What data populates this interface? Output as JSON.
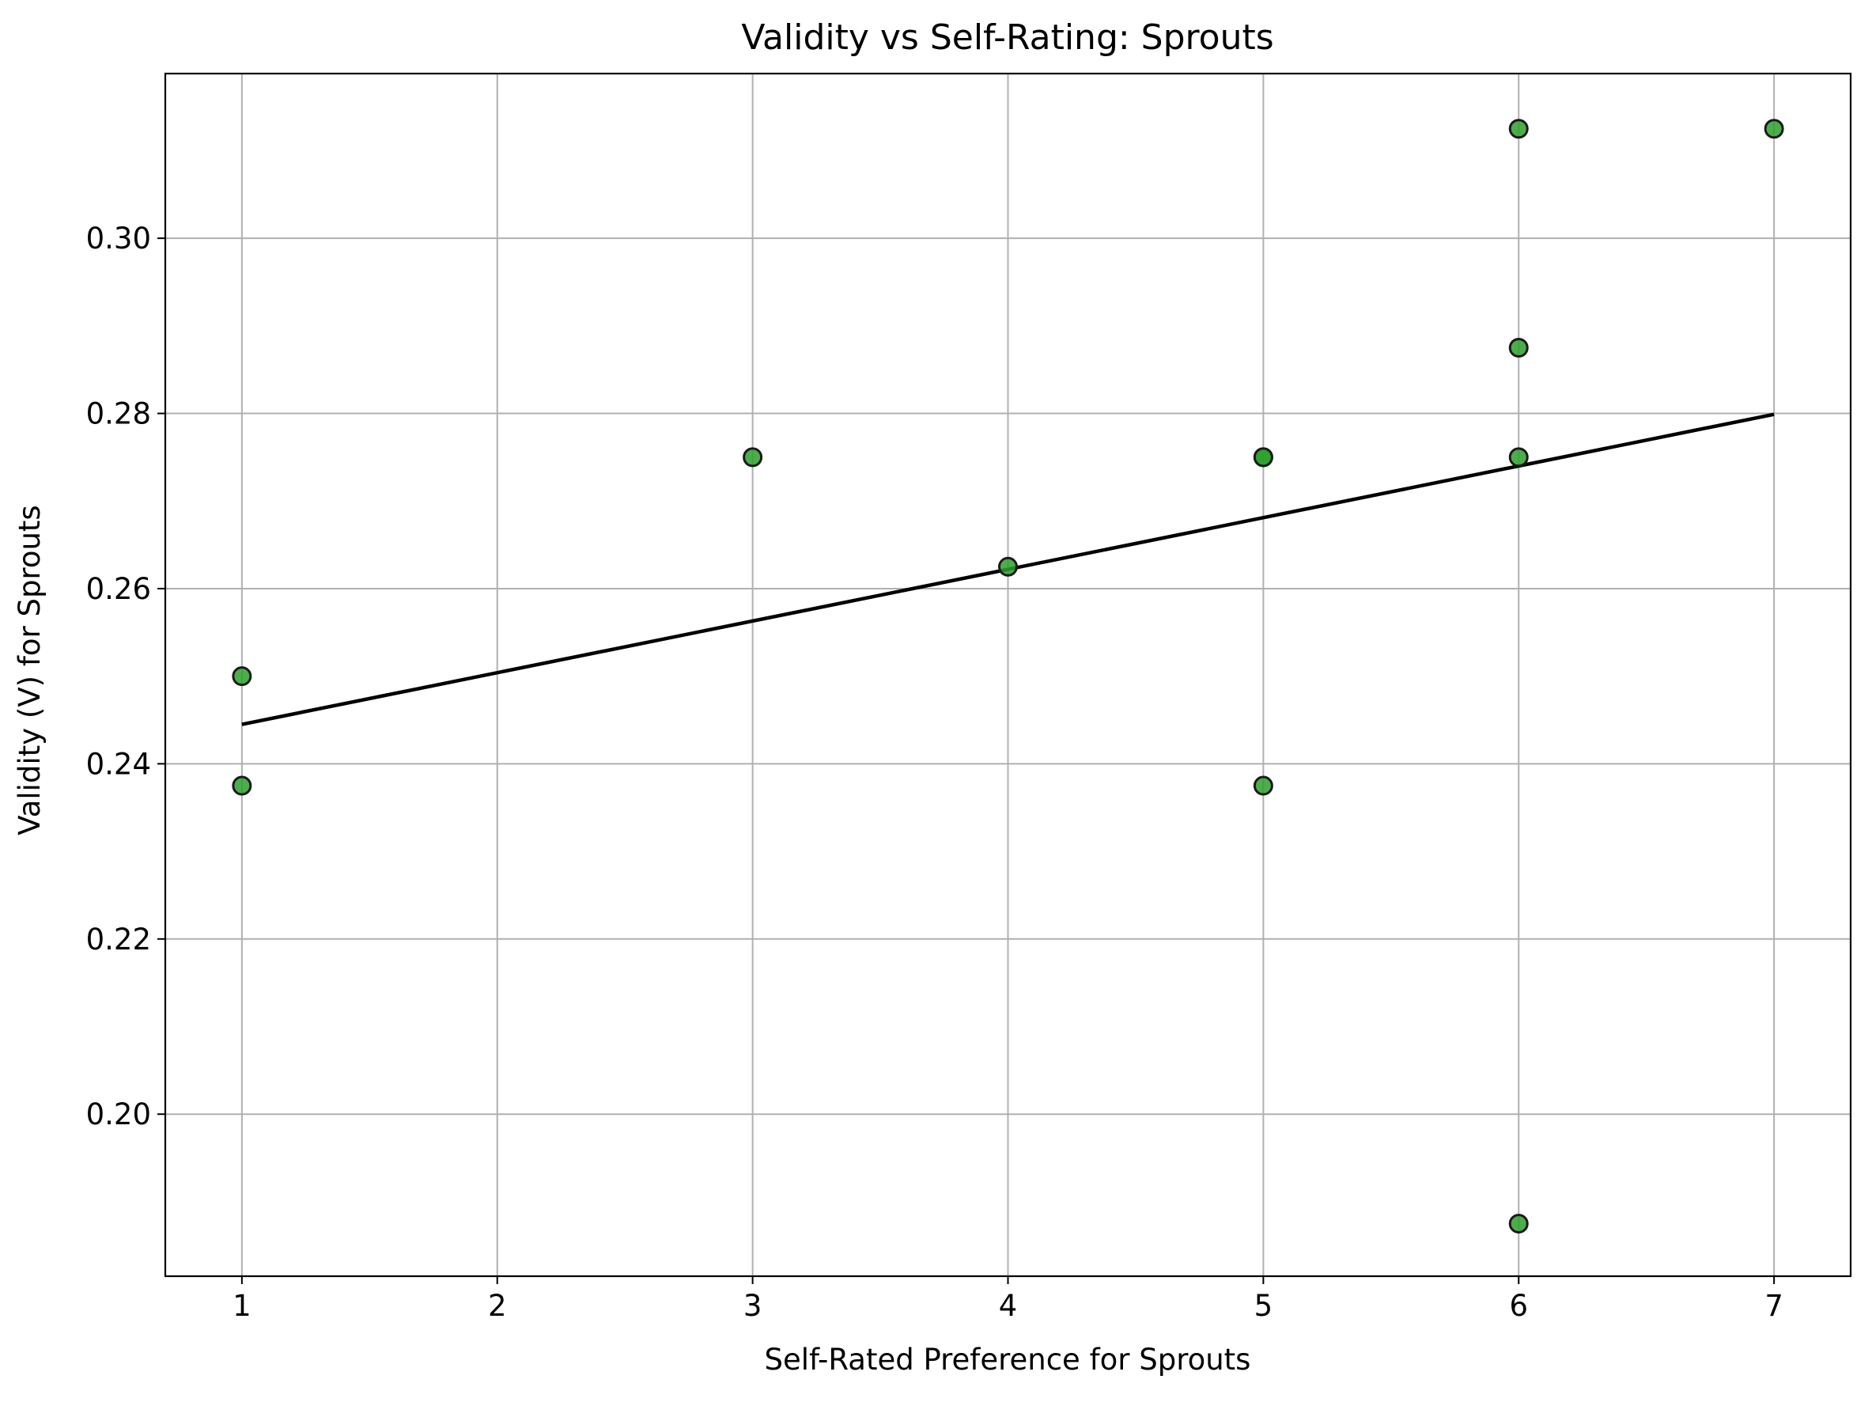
{
  "chart_data": {
    "type": "scatter",
    "title": "Validity vs Self-Rating: Sprouts",
    "xlabel": "Self-Rated Preference for Sprouts",
    "ylabel": "Validity (V) for Sprouts",
    "xlim": [
      0.7,
      7.3
    ],
    "ylim": [
      0.1815,
      0.3188
    ],
    "xticks": [
      1,
      2,
      3,
      4,
      5,
      6,
      7
    ],
    "xtick_labels": [
      "1",
      "2",
      "3",
      "4",
      "5",
      "6",
      "7"
    ],
    "yticks": [
      0.2,
      0.22,
      0.24,
      0.26,
      0.28,
      0.3
    ],
    "ytick_labels": [
      "0.20",
      "0.22",
      "0.24",
      "0.26",
      "0.28",
      "0.30"
    ],
    "grid": true,
    "legend": "none",
    "series": [
      {
        "kind": "scatter",
        "color": "#2ca02c",
        "edgecolor": "#1a1a1a",
        "points": [
          {
            "x": 1,
            "y": 0.25
          },
          {
            "x": 1,
            "y": 0.2375
          },
          {
            "x": 3,
            "y": 0.275
          },
          {
            "x": 4,
            "y": 0.2625
          },
          {
            "x": 5,
            "y": 0.275
          },
          {
            "x": 5,
            "y": 0.275
          },
          {
            "x": 5,
            "y": 0.2375
          },
          {
            "x": 6,
            "y": 0.3125
          },
          {
            "x": 6,
            "y": 0.2875
          },
          {
            "x": 6,
            "y": 0.275
          },
          {
            "x": 6,
            "y": 0.1875
          },
          {
            "x": 7,
            "y": 0.3125
          }
        ]
      },
      {
        "kind": "line",
        "color": "#000000",
        "points": [
          {
            "x": 1,
            "y": 0.2445
          },
          {
            "x": 7,
            "y": 0.2799
          }
        ]
      }
    ]
  }
}
